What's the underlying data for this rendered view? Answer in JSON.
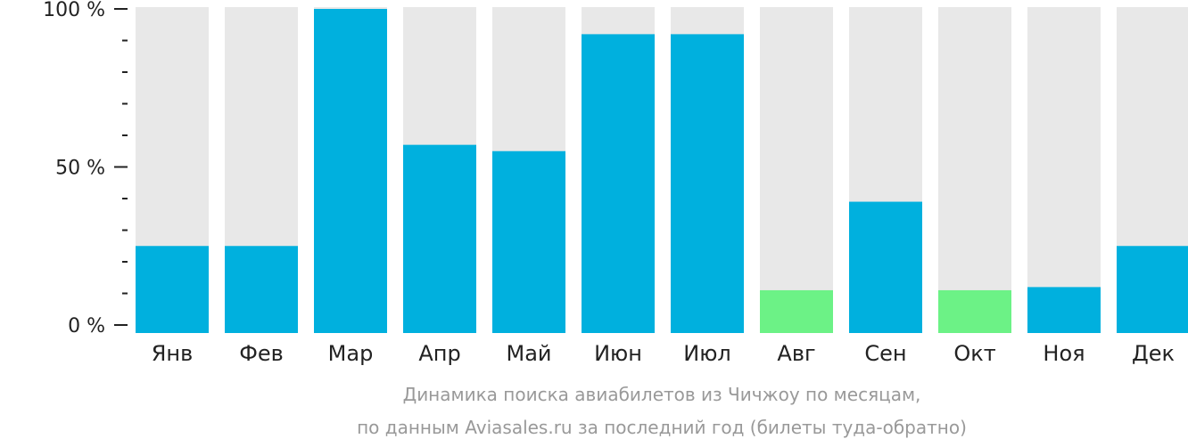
{
  "chart_data": {
    "type": "bar",
    "categories": [
      "Янв",
      "Фев",
      "Мар",
      "Апр",
      "Май",
      "Июн",
      "Июл",
      "Авг",
      "Сен",
      "Окт",
      "Ноя",
      "Дек"
    ],
    "values": [
      25,
      25,
      100,
      57,
      55,
      92,
      92,
      11,
      39,
      11,
      12,
      25
    ],
    "highlight": [
      false,
      false,
      false,
      false,
      false,
      false,
      false,
      true,
      false,
      true,
      false,
      false
    ],
    "ylim": [
      0,
      100
    ],
    "yticks": [
      {
        "value": 0,
        "label": "0 %"
      },
      {
        "value": 50,
        "label": "50 %"
      },
      {
        "value": 100,
        "label": "100 %"
      }
    ],
    "minor_tick_step": 10,
    "caption_line1": "Динамика поиска авиабилетов из Чичжоу по месяцам,",
    "caption_line2": "по данным Aviasales.ru за последний год (билеты туда-обратно)",
    "colors": {
      "bar": "#00b0de",
      "bar_highlight": "#6cf286",
      "track": "#e8e8e8",
      "axis": "#222222",
      "text": "#222222",
      "caption": "#999999"
    }
  }
}
